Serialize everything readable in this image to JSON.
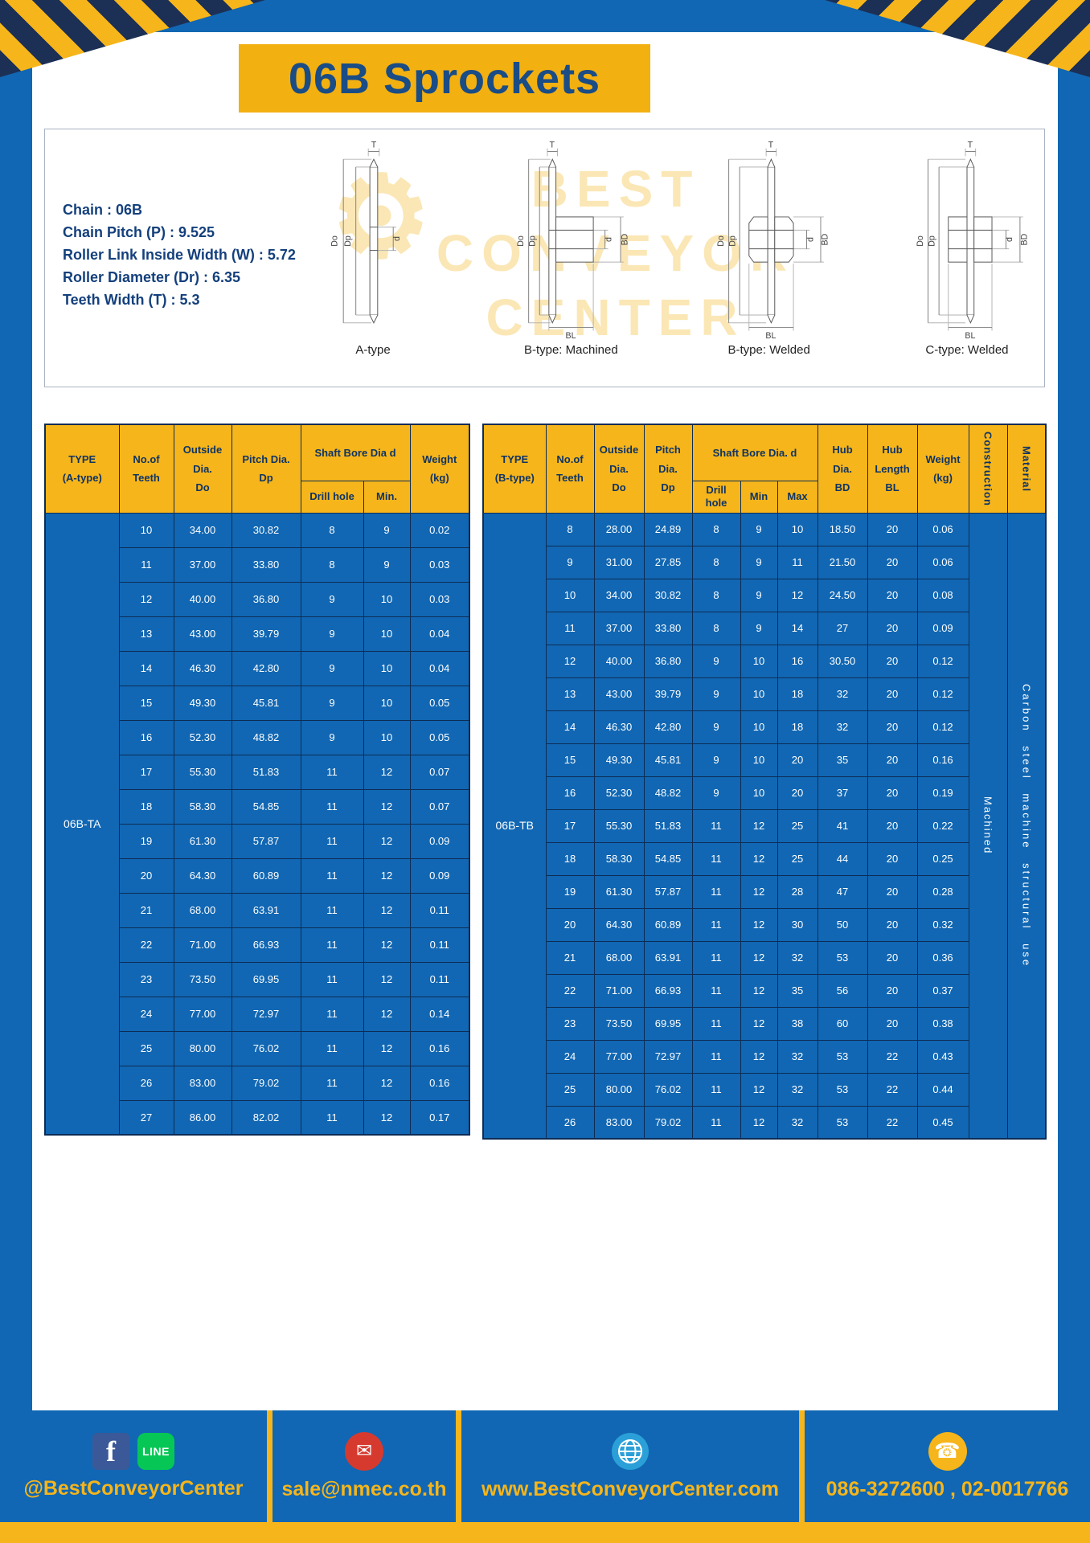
{
  "page": {
    "title": "06B Sprockets"
  },
  "colors": {
    "page_blue": "#1167b3",
    "accent_yellow": "#f6b51a",
    "dark_navy": "#1c2f55",
    "header_text_blue": "#0f3464",
    "title_text_blue": "#1a4c86"
  },
  "specs": {
    "lines": [
      "Chain  :  06B",
      "Chain Pitch (P)  :  9.525",
      "Roller Link Inside Width (W)  :  5.72",
      "Roller Diameter (Dr)  :  6.35",
      "Teeth Width (T)  :  5.3"
    ]
  },
  "watermark": {
    "line1": "BEST",
    "line2": "CONVEYOR",
    "line3": "CENTER"
  },
  "drawings": {
    "captions": [
      "A-type",
      "B-type: Machined",
      "B-type: Welded",
      "C-type: Welded"
    ],
    "dims": {
      "T": "T",
      "Do": "Do",
      "Dp": "Dp",
      "d": "d",
      "BD": "BD",
      "BL": "BL"
    }
  },
  "table_a": {
    "type_label": "06B-TA",
    "headers": {
      "type": "TYPE\n(A-type)",
      "teeth": "No.of\nTeeth",
      "outside": "Outside\nDia.\nDo",
      "pitch": "Pitch Dia.\nDp",
      "shaft_bore": "Shaft Bore Dia d",
      "drill": "Drill hole",
      "min": "Min.",
      "weight": "Weight\n(kg)"
    },
    "rows": [
      [
        "10",
        "34.00",
        "30.82",
        "8",
        "9",
        "0.02"
      ],
      [
        "11",
        "37.00",
        "33.80",
        "8",
        "9",
        "0.03"
      ],
      [
        "12",
        "40.00",
        "36.80",
        "9",
        "10",
        "0.03"
      ],
      [
        "13",
        "43.00",
        "39.79",
        "9",
        "10",
        "0.04"
      ],
      [
        "14",
        "46.30",
        "42.80",
        "9",
        "10",
        "0.04"
      ],
      [
        "15",
        "49.30",
        "45.81",
        "9",
        "10",
        "0.05"
      ],
      [
        "16",
        "52.30",
        "48.82",
        "9",
        "10",
        "0.05"
      ],
      [
        "17",
        "55.30",
        "51.83",
        "11",
        "12",
        "0.07"
      ],
      [
        "18",
        "58.30",
        "54.85",
        "11",
        "12",
        "0.07"
      ],
      [
        "19",
        "61.30",
        "57.87",
        "11",
        "12",
        "0.09"
      ],
      [
        "20",
        "64.30",
        "60.89",
        "11",
        "12",
        "0.09"
      ],
      [
        "21",
        "68.00",
        "63.91",
        "11",
        "12",
        "0.11"
      ],
      [
        "22",
        "71.00",
        "66.93",
        "11",
        "12",
        "0.11"
      ],
      [
        "23",
        "73.50",
        "69.95",
        "11",
        "12",
        "0.11"
      ],
      [
        "24",
        "77.00",
        "72.97",
        "11",
        "12",
        "0.14"
      ],
      [
        "25",
        "80.00",
        "76.02",
        "11",
        "12",
        "0.16"
      ],
      [
        "26",
        "83.00",
        "79.02",
        "11",
        "12",
        "0.16"
      ],
      [
        "27",
        "86.00",
        "82.02",
        "11",
        "12",
        "0.17"
      ]
    ]
  },
  "table_b": {
    "type_label": "06B-TB",
    "construction": "Machined",
    "material": "Carbon steel machine structural use",
    "headers": {
      "type": "TYPE\n(B-type)",
      "teeth": "No.of\nTeeth",
      "outside": "Outside\nDia.\nDo",
      "pitch": "Pitch\nDia.\nDp",
      "shaft_bore": "Shaft Bore Dia.  d",
      "drill": "Drill hole",
      "min": "Min",
      "max": "Max",
      "hub_dia": "Hub\nDia.\nBD",
      "hub_len": "Hub\nLength\nBL",
      "weight": "Weight\n(kg)",
      "construction": "Construction",
      "material": "Material"
    },
    "rows": [
      [
        "8",
        "28.00",
        "24.89",
        "8",
        "9",
        "10",
        "18.50",
        "20",
        "0.06"
      ],
      [
        "9",
        "31.00",
        "27.85",
        "8",
        "9",
        "11",
        "21.50",
        "20",
        "0.06"
      ],
      [
        "10",
        "34.00",
        "30.82",
        "8",
        "9",
        "12",
        "24.50",
        "20",
        "0.08"
      ],
      [
        "11",
        "37.00",
        "33.80",
        "8",
        "9",
        "14",
        "27",
        "20",
        "0.09"
      ],
      [
        "12",
        "40.00",
        "36.80",
        "9",
        "10",
        "16",
        "30.50",
        "20",
        "0.12"
      ],
      [
        "13",
        "43.00",
        "39.79",
        "9",
        "10",
        "18",
        "32",
        "20",
        "0.12"
      ],
      [
        "14",
        "46.30",
        "42.80",
        "9",
        "10",
        "18",
        "32",
        "20",
        "0.12"
      ],
      [
        "15",
        "49.30",
        "45.81",
        "9",
        "10",
        "20",
        "35",
        "20",
        "0.16"
      ],
      [
        "16",
        "52.30",
        "48.82",
        "9",
        "10",
        "20",
        "37",
        "20",
        "0.19"
      ],
      [
        "17",
        "55.30",
        "51.83",
        "11",
        "12",
        "25",
        "41",
        "20",
        "0.22"
      ],
      [
        "18",
        "58.30",
        "54.85",
        "11",
        "12",
        "25",
        "44",
        "20",
        "0.25"
      ],
      [
        "19",
        "61.30",
        "57.87",
        "11",
        "12",
        "28",
        "47",
        "20",
        "0.28"
      ],
      [
        "20",
        "64.30",
        "60.89",
        "11",
        "12",
        "30",
        "50",
        "20",
        "0.32"
      ],
      [
        "21",
        "68.00",
        "63.91",
        "11",
        "12",
        "32",
        "53",
        "20",
        "0.36"
      ],
      [
        "22",
        "71.00",
        "66.93",
        "11",
        "12",
        "35",
        "56",
        "20",
        "0.37"
      ],
      [
        "23",
        "73.50",
        "69.95",
        "11",
        "12",
        "38",
        "60",
        "20",
        "0.38"
      ],
      [
        "24",
        "77.00",
        "72.97",
        "11",
        "12",
        "32",
        "53",
        "22",
        "0.43"
      ],
      [
        "25",
        "80.00",
        "76.02",
        "11",
        "12",
        "32",
        "53",
        "22",
        "0.44"
      ],
      [
        "26",
        "83.00",
        "79.02",
        "11",
        "12",
        "32",
        "53",
        "22",
        "0.45"
      ]
    ]
  },
  "footer": {
    "facebook": "@BestConveyorCenter",
    "email": "sale@nmec.co.th",
    "website": "www.BestConveyorCenter.com",
    "phone": "086-3272600 , 02-0017766"
  },
  "icons": {
    "facebook_f": "f",
    "line": "LINE",
    "mail_glyph": "✉",
    "phone_glyph": "☎",
    "gear_glyph": "⚙"
  }
}
